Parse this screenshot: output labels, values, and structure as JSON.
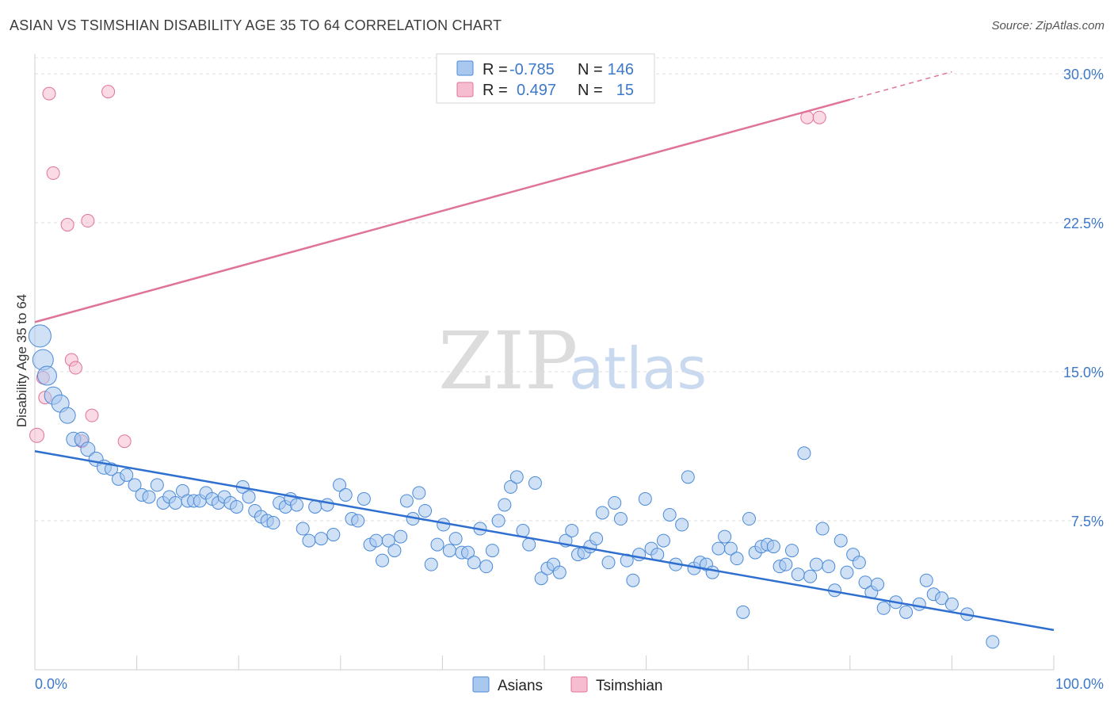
{
  "header": {
    "title": "ASIAN VS TSIMSHIAN DISABILITY AGE 35 TO 64 CORRELATION CHART",
    "source": "Source: ZipAtlas.com"
  },
  "watermark": {
    "zip": "ZIP",
    "atlas": "atlas"
  },
  "legend": {
    "rows": [
      {
        "r_label": "R =",
        "r_value": "-0.785",
        "n_label": "N =",
        "n_value": "146",
        "color": "#a9c8ef"
      },
      {
        "r_label": "R =",
        "r_value": "0.497",
        "n_label": "N =",
        "n_value": "15",
        "color": "#f6bcd0"
      }
    ]
  },
  "bottom_legend": [
    {
      "label": "Asians",
      "color": "#a9c8ef"
    },
    {
      "label": "Tsimshian",
      "color": "#f6bcd0"
    }
  ],
  "chart_data": {
    "type": "scatter",
    "title": "ASIAN VS TSIMSHIAN DISABILITY AGE 35 TO 64 CORRELATION CHART",
    "xlabel": "",
    "ylabel": "Disability Age 35 to 64",
    "xlim": [
      0,
      100
    ],
    "ylim": [
      0,
      31
    ],
    "x_tick_labels": [
      "0.0%",
      "100.0%"
    ],
    "y_ticks": [
      7.5,
      15.0,
      22.5,
      30.0
    ],
    "y_tick_labels": [
      "7.5%",
      "15.0%",
      "22.5%",
      "30.0%"
    ],
    "grid": "horizontal dashed",
    "legend_position": "top-center",
    "colors": {
      "asians": "#4a8ad8",
      "asians_fill": "#a9c8ef",
      "tsimshian": "#e0739a",
      "tsimshian_fill": "#f6bcd0"
    },
    "series": [
      {
        "name": "Asians",
        "trend": {
          "x": [
            0,
            100
          ],
          "y": [
            11.0,
            2.0
          ]
        },
        "points": [
          [
            0.5,
            16.8,
            14
          ],
          [
            0.8,
            15.6,
            13
          ],
          [
            1.2,
            14.8,
            12
          ],
          [
            1.8,
            13.8,
            11
          ],
          [
            2.5,
            13.4,
            11
          ],
          [
            3.2,
            12.8,
            10
          ],
          [
            3.8,
            11.6,
            9
          ],
          [
            4.6,
            11.6,
            9
          ],
          [
            5.2,
            11.1,
            9
          ],
          [
            6.0,
            10.6,
            9
          ],
          [
            6.8,
            10.2,
            9
          ],
          [
            7.5,
            10.1,
            8
          ],
          [
            8.2,
            9.6,
            8
          ],
          [
            9.0,
            9.8,
            8
          ],
          [
            9.8,
            9.3,
            8
          ],
          [
            10.5,
            8.8,
            8
          ],
          [
            11.2,
            8.7,
            8
          ],
          [
            12.0,
            9.3,
            8
          ],
          [
            12.6,
            8.4,
            8
          ],
          [
            13.2,
            8.7,
            8
          ],
          [
            13.8,
            8.4,
            8
          ],
          [
            14.5,
            9.0,
            8
          ],
          [
            15.0,
            8.5,
            8
          ],
          [
            15.6,
            8.5,
            8
          ],
          [
            16.2,
            8.5,
            8
          ],
          [
            16.8,
            8.9,
            8
          ],
          [
            17.4,
            8.6,
            8
          ],
          [
            18.0,
            8.4,
            8
          ],
          [
            18.6,
            8.7,
            8
          ],
          [
            19.2,
            8.4,
            8
          ],
          [
            19.8,
            8.2,
            8
          ],
          [
            20.4,
            9.2,
            8
          ],
          [
            21.0,
            8.7,
            8
          ],
          [
            21.6,
            8.0,
            8
          ],
          [
            22.2,
            7.7,
            8
          ],
          [
            22.8,
            7.5,
            8
          ],
          [
            23.4,
            7.4,
            8
          ],
          [
            24.0,
            8.4,
            8
          ],
          [
            24.6,
            8.2,
            8
          ],
          [
            25.1,
            8.6,
            8
          ],
          [
            25.7,
            8.3,
            8
          ],
          [
            26.3,
            7.1,
            8
          ],
          [
            26.9,
            6.5,
            8
          ],
          [
            27.5,
            8.2,
            8
          ],
          [
            28.1,
            6.6,
            8
          ],
          [
            28.7,
            8.3,
            8
          ],
          [
            29.3,
            6.8,
            8
          ],
          [
            29.9,
            9.3,
            8
          ],
          [
            30.5,
            8.8,
            8
          ],
          [
            31.1,
            7.6,
            8
          ],
          [
            31.7,
            7.5,
            8
          ],
          [
            32.3,
            8.6,
            8
          ],
          [
            32.9,
            6.3,
            8
          ],
          [
            33.5,
            6.5,
            8
          ],
          [
            34.1,
            5.5,
            8
          ],
          [
            34.7,
            6.5,
            8
          ],
          [
            35.3,
            6.0,
            8
          ],
          [
            35.9,
            6.7,
            8
          ],
          [
            36.5,
            8.5,
            8
          ],
          [
            37.1,
            7.6,
            8
          ],
          [
            37.7,
            8.9,
            8
          ],
          [
            38.3,
            8.0,
            8
          ],
          [
            38.9,
            5.3,
            8
          ],
          [
            39.5,
            6.3,
            8
          ],
          [
            40.1,
            7.3,
            8
          ],
          [
            40.7,
            6.0,
            8
          ],
          [
            41.3,
            6.6,
            8
          ],
          [
            41.9,
            5.9,
            8
          ],
          [
            42.5,
            5.9,
            8
          ],
          [
            43.1,
            5.4,
            8
          ],
          [
            43.7,
            7.1,
            8
          ],
          [
            44.3,
            5.2,
            8
          ],
          [
            44.9,
            6.0,
            8
          ],
          [
            45.5,
            7.5,
            8
          ],
          [
            46.1,
            8.3,
            8
          ],
          [
            46.7,
            9.2,
            8
          ],
          [
            47.3,
            9.7,
            8
          ],
          [
            47.9,
            7.0,
            8
          ],
          [
            48.5,
            6.3,
            8
          ],
          [
            49.1,
            9.4,
            8
          ],
          [
            49.7,
            4.6,
            8
          ],
          [
            50.3,
            5.1,
            8
          ],
          [
            50.9,
            5.3,
            8
          ],
          [
            51.5,
            4.9,
            8
          ],
          [
            52.1,
            6.5,
            8
          ],
          [
            52.7,
            7.0,
            8
          ],
          [
            53.3,
            5.8,
            8
          ],
          [
            53.9,
            5.9,
            8
          ],
          [
            54.5,
            6.2,
            8
          ],
          [
            55.1,
            6.6,
            8
          ],
          [
            55.7,
            7.9,
            8
          ],
          [
            56.3,
            5.4,
            8
          ],
          [
            56.9,
            8.4,
            8
          ],
          [
            57.5,
            7.6,
            8
          ],
          [
            58.1,
            5.5,
            8
          ],
          [
            58.7,
            4.5,
            8
          ],
          [
            59.3,
            5.8,
            8
          ],
          [
            59.9,
            8.6,
            8
          ],
          [
            60.5,
            6.1,
            8
          ],
          [
            61.1,
            5.8,
            8
          ],
          [
            61.7,
            6.5,
            8
          ],
          [
            62.3,
            7.8,
            8
          ],
          [
            62.9,
            5.3,
            8
          ],
          [
            63.5,
            7.3,
            8
          ],
          [
            64.1,
            9.7,
            8
          ],
          [
            64.7,
            5.1,
            8
          ],
          [
            65.3,
            5.4,
            8
          ],
          [
            65.9,
            5.3,
            8
          ],
          [
            66.5,
            4.9,
            8
          ],
          [
            67.1,
            6.1,
            8
          ],
          [
            67.7,
            6.7,
            8
          ],
          [
            68.3,
            6.1,
            8
          ],
          [
            68.9,
            5.6,
            8
          ],
          [
            69.5,
            2.9,
            8
          ],
          [
            70.1,
            7.6,
            8
          ],
          [
            70.7,
            5.9,
            8
          ],
          [
            71.3,
            6.2,
            8
          ],
          [
            71.9,
            6.3,
            8
          ],
          [
            72.5,
            6.2,
            8
          ],
          [
            73.1,
            5.2,
            8
          ],
          [
            73.7,
            5.3,
            8
          ],
          [
            74.3,
            6.0,
            8
          ],
          [
            74.9,
            4.8,
            8
          ],
          [
            75.5,
            10.9,
            8
          ],
          [
            76.1,
            4.7,
            8
          ],
          [
            76.7,
            5.3,
            8
          ],
          [
            77.3,
            7.1,
            8
          ],
          [
            77.9,
            5.2,
            8
          ],
          [
            78.5,
            4.0,
            8
          ],
          [
            79.1,
            6.5,
            8
          ],
          [
            79.7,
            4.9,
            8
          ],
          [
            80.3,
            5.8,
            8
          ],
          [
            80.9,
            5.4,
            8
          ],
          [
            81.5,
            4.4,
            8
          ],
          [
            82.1,
            3.9,
            8
          ],
          [
            82.7,
            4.3,
            8
          ],
          [
            83.3,
            3.1,
            8
          ],
          [
            84.5,
            3.4,
            8
          ],
          [
            85.5,
            2.9,
            8
          ],
          [
            86.8,
            3.3,
            8
          ],
          [
            87.5,
            4.5,
            8
          ],
          [
            88.2,
            3.8,
            8
          ],
          [
            89.0,
            3.6,
            8
          ],
          [
            90.0,
            3.3,
            8
          ],
          [
            91.5,
            2.8,
            8
          ],
          [
            94.0,
            1.4,
            8
          ]
        ]
      },
      {
        "name": "Tsimshian",
        "trend": {
          "x": [
            0,
            80
          ],
          "y": [
            17.5,
            28.7
          ],
          "dashed_to": {
            "x": 90,
            "y": 30.1
          }
        },
        "points": [
          [
            0.2,
            11.8,
            9
          ],
          [
            0.8,
            14.7,
            8
          ],
          [
            1.4,
            29.0,
            8
          ],
          [
            1.8,
            25.0,
            8
          ],
          [
            3.2,
            22.4,
            8
          ],
          [
            3.6,
            15.6,
            8
          ],
          [
            4.0,
            15.2,
            8
          ],
          [
            4.6,
            11.5,
            8
          ],
          [
            5.6,
            12.8,
            8
          ],
          [
            5.2,
            22.6,
            8
          ],
          [
            7.2,
            29.1,
            8
          ],
          [
            8.8,
            11.5,
            8
          ],
          [
            1.0,
            13.7,
            8
          ],
          [
            75.8,
            27.8,
            8
          ],
          [
            77.0,
            27.8,
            8
          ]
        ]
      }
    ]
  }
}
